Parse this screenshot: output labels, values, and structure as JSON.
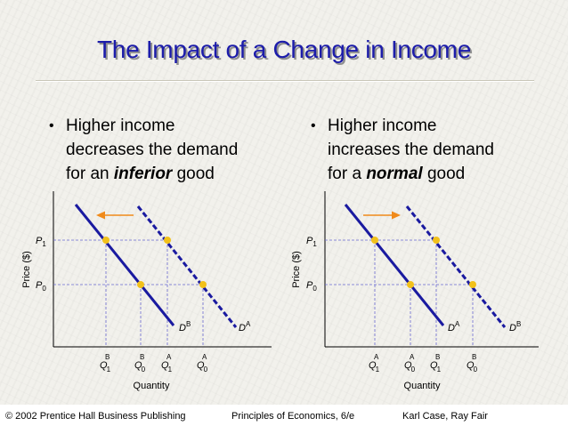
{
  "title": "The Impact of a Change in Income",
  "bullets": {
    "left": {
      "line1": "Higher income",
      "line2": "decreases the demand",
      "line3_pre": "for an ",
      "line3_em": "inferior",
      "line3_post": " good"
    },
    "right": {
      "line1": "Higher income",
      "line2": "increases the demand",
      "line3_pre": "for a ",
      "line3_em": "normal",
      "line3_post": " good"
    }
  },
  "charts": {
    "left": {
      "ylabel": "Price ($)",
      "xlabel": "Quantity",
      "p1": "P",
      "p1_sub": "1",
      "p0": "P",
      "p0_sub": "0",
      "solid_curve_label": "D",
      "solid_curve_sup": "B",
      "dashed_curve_label": "D",
      "dashed_curve_sup": "A",
      "q_labels": [
        {
          "main": "Q",
          "sup": "B",
          "sub": "1"
        },
        {
          "main": "Q",
          "sup": "B",
          "sub": "0"
        },
        {
          "main": "Q",
          "sup": "A",
          "sub": "1"
        },
        {
          "main": "Q",
          "sup": "A",
          "sub": "0"
        }
      ]
    },
    "right": {
      "ylabel": "Price ($)",
      "xlabel": "Quantity",
      "p1": "P",
      "p1_sub": "1",
      "p0": "P",
      "p0_sub": "0",
      "solid_curve_label": "D",
      "solid_curve_sup": "A",
      "dashed_curve_label": "D",
      "dashed_curve_sup": "B",
      "q_labels": [
        {
          "main": "Q",
          "sup": "A",
          "sub": "1"
        },
        {
          "main": "Q",
          "sup": "A",
          "sub": "0"
        },
        {
          "main": "Q",
          "sup": "B",
          "sub": "1"
        },
        {
          "main": "Q",
          "sup": "B",
          "sub": "0"
        }
      ]
    }
  },
  "colors": {
    "curve": "#1a1aa0",
    "point": "#f2c11a",
    "arrow": "#f08a1a",
    "guide": "#6a6ad0",
    "title": "#1c1caa"
  },
  "footer": {
    "left": "© 2002 Prentice Hall Business Publishing",
    "center": "Principles of Economics, 6/e",
    "right": "Karl Case, Ray Fair"
  }
}
